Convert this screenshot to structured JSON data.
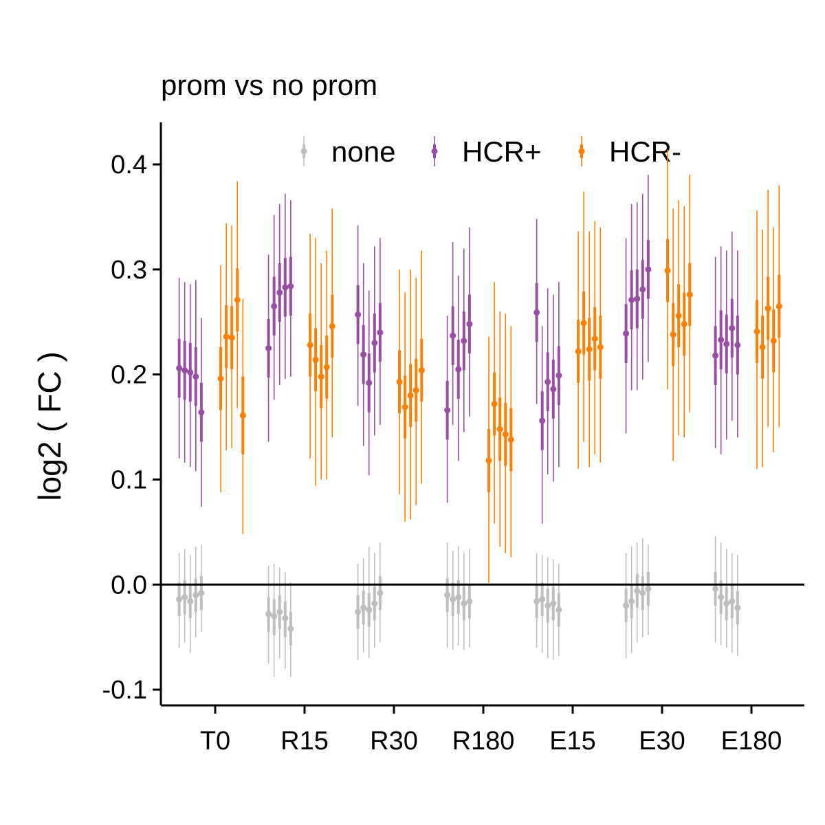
{
  "chart_data": {
    "type": "scatter",
    "title": "prom vs no prom",
    "xlabel": "",
    "ylabel": "log2 ( FC )",
    "categories": [
      "T0",
      "R15",
      "R30",
      "R180",
      "E15",
      "E30",
      "E180"
    ],
    "yticks": [
      "-0.1",
      "0.0",
      "0.1",
      "0.2",
      "0.3",
      "0.4"
    ],
    "ylim": [
      -0.115,
      0.44
    ],
    "reference_line_y": 0,
    "grid": false,
    "legend_position": "top",
    "offsets": [
      -0.26,
      -0.22,
      -0.18,
      -0.14,
      -0.1,
      -0.06,
      -0.02,
      0.02,
      0.06,
      0.1,
      0.14,
      0.18,
      0.22,
      0.26
    ],
    "series": [
      {
        "name": "none",
        "color": "#bebebe",
        "offset_index": [
          0,
          1,
          2,
          3,
          4
        ],
        "points": [
          [
            [
              -0.014,
              -0.03,
              0.002,
              -0.06,
              0.03
            ],
            [
              -0.012,
              -0.028,
              0.004,
              -0.055,
              0.034
            ],
            [
              -0.016,
              -0.032,
              0.0,
              -0.065,
              0.028
            ],
            [
              -0.01,
              -0.026,
              0.006,
              -0.05,
              0.036
            ],
            [
              -0.008,
              -0.024,
              0.008,
              -0.045,
              0.038
            ]
          ],
          [
            [
              -0.028,
              -0.045,
              -0.012,
              -0.075,
              0.018
            ],
            [
              -0.03,
              -0.048,
              -0.014,
              -0.088,
              0.02
            ],
            [
              -0.026,
              -0.042,
              -0.01,
              -0.07,
              0.016
            ],
            [
              -0.032,
              -0.05,
              -0.016,
              -0.08,
              0.012
            ],
            [
              -0.042,
              -0.058,
              -0.026,
              -0.088,
              0.002
            ]
          ],
          [
            [
              -0.026,
              -0.042,
              -0.01,
              -0.072,
              0.02
            ],
            [
              -0.022,
              -0.038,
              -0.006,
              -0.065,
              0.025
            ],
            [
              -0.024,
              -0.04,
              -0.008,
              -0.07,
              0.036
            ],
            [
              -0.018,
              -0.034,
              -0.002,
              -0.06,
              0.03
            ],
            [
              -0.008,
              -0.024,
              0.008,
              -0.055,
              0.04
            ]
          ],
          [
            [
              -0.01,
              -0.026,
              0.006,
              -0.06,
              0.04
            ],
            [
              -0.014,
              -0.03,
              0.002,
              -0.062,
              0.032
            ],
            [
              -0.012,
              -0.028,
              0.004,
              -0.058,
              0.036
            ],
            [
              -0.018,
              -0.034,
              -0.002,
              -0.062,
              0.03
            ],
            [
              -0.016,
              -0.032,
              0.0,
              -0.06,
              0.034
            ]
          ],
          [
            [
              -0.016,
              -0.032,
              0.0,
              -0.06,
              0.03
            ],
            [
              -0.014,
              -0.03,
              0.002,
              -0.065,
              0.028
            ],
            [
              -0.02,
              -0.036,
              -0.004,
              -0.07,
              0.026
            ],
            [
              -0.018,
              -0.034,
              -0.002,
              -0.072,
              0.024
            ],
            [
              -0.024,
              -0.04,
              -0.008,
              -0.068,
              0.02
            ]
          ],
          [
            [
              -0.02,
              -0.036,
              -0.004,
              -0.07,
              0.03
            ],
            [
              -0.016,
              -0.032,
              0.0,
              -0.065,
              0.036
            ],
            [
              -0.006,
              -0.022,
              0.01,
              -0.055,
              0.04
            ],
            [
              -0.008,
              -0.024,
              0.008,
              -0.05,
              0.044
            ],
            [
              -0.004,
              -0.02,
              0.012,
              -0.048,
              0.038
            ]
          ],
          [
            [
              -0.004,
              -0.02,
              0.012,
              -0.055,
              0.046
            ],
            [
              -0.012,
              -0.028,
              0.004,
              -0.058,
              0.04
            ],
            [
              -0.018,
              -0.034,
              -0.002,
              -0.06,
              0.034
            ],
            [
              -0.016,
              -0.032,
              0.0,
              -0.065,
              0.03
            ],
            [
              -0.022,
              -0.038,
              -0.006,
              -0.068,
              0.028
            ]
          ]
        ]
      },
      {
        "name": "HCR+",
        "color": "#984ea3",
        "offset_index": [
          0,
          1,
          2,
          3,
          4
        ],
        "points": [
          [
            [
              0.206,
              0.178,
              0.234,
              0.12,
              0.292
            ],
            [
              0.204,
              0.176,
              0.232,
              0.116,
              0.288
            ],
            [
              0.202,
              0.174,
              0.23,
              0.112,
              0.286
            ],
            [
              0.198,
              0.17,
              0.226,
              0.108,
              0.29
            ],
            [
              0.164,
              0.136,
              0.192,
              0.074,
              0.254
            ]
          ],
          [
            [
              0.225,
              0.197,
              0.253,
              0.136,
              0.314
            ],
            [
              0.265,
              0.237,
              0.293,
              0.176,
              0.352
            ],
            [
              0.278,
              0.25,
              0.306,
              0.19,
              0.362
            ],
            [
              0.283,
              0.255,
              0.311,
              0.196,
              0.372
            ],
            [
              0.284,
              0.256,
              0.312,
              0.198,
              0.366
            ]
          ],
          [
            [
              0.257,
              0.229,
              0.285,
              0.17,
              0.342
            ],
            [
              0.219,
              0.191,
              0.247,
              0.132,
              0.306
            ],
            [
              0.192,
              0.164,
              0.22,
              0.104,
              0.28
            ],
            [
              0.23,
              0.202,
              0.258,
              0.142,
              0.322
            ],
            [
              0.24,
              0.212,
              0.268,
              0.152,
              0.33
            ]
          ],
          [
            [
              0.166,
              0.138,
              0.194,
              0.078,
              0.256
            ],
            [
              0.237,
              0.209,
              0.265,
              0.152,
              0.326
            ],
            [
              0.205,
              0.177,
              0.233,
              0.118,
              0.294
            ],
            [
              0.232,
              0.204,
              0.26,
              0.145,
              0.32
            ],
            [
              0.248,
              0.22,
              0.276,
              0.16,
              0.34
            ]
          ],
          [
            [
              0.259,
              0.231,
              0.287,
              0.172,
              0.348
            ],
            [
              0.156,
              0.128,
              0.184,
              0.058,
              0.246
            ],
            [
              0.193,
              0.165,
              0.221,
              0.105,
              0.282
            ],
            [
              0.186,
              0.158,
              0.214,
              0.098,
              0.276
            ],
            [
              0.199,
              0.171,
              0.227,
              0.112,
              0.288
            ]
          ],
          [
            [
              0.239,
              0.211,
              0.267,
              0.144,
              0.33
            ],
            [
              0.271,
              0.243,
              0.299,
              0.185,
              0.362
            ],
            [
              0.272,
              0.244,
              0.3,
              0.185,
              0.364
            ],
            [
              0.281,
              0.253,
              0.309,
              0.195,
              0.372
            ],
            [
              0.3,
              0.272,
              0.328,
              0.212,
              0.39
            ]
          ],
          [
            [
              0.218,
              0.19,
              0.246,
              0.13,
              0.312
            ],
            [
              0.233,
              0.205,
              0.261,
              0.124,
              0.322
            ],
            [
              0.229,
              0.201,
              0.257,
              0.138,
              0.318
            ],
            [
              0.244,
              0.216,
              0.272,
              0.156,
              0.336
            ],
            [
              0.228,
              0.2,
              0.256,
              0.14,
              0.318
            ]
          ]
        ]
      },
      {
        "name": "HCR-",
        "color": "#ff7f00",
        "offset_index": [
          5,
          6,
          7,
          8,
          9
        ],
        "points": [
          [
            [
              0.196,
              0.166,
              0.226,
              0.088,
              0.304
            ],
            [
              0.236,
              0.206,
              0.266,
              0.128,
              0.344
            ],
            [
              0.235,
              0.205,
              0.265,
              0.13,
              0.342
            ],
            [
              0.271,
              0.241,
              0.301,
              0.168,
              0.384
            ],
            [
              0.161,
              0.124,
              0.198,
              0.048,
              0.272
            ]
          ],
          [
            [
              0.228,
              0.198,
              0.258,
              0.12,
              0.334
            ],
            [
              0.214,
              0.184,
              0.244,
              0.094,
              0.33
            ],
            [
              0.198,
              0.168,
              0.228,
              0.1,
              0.306
            ],
            [
              0.207,
              0.177,
              0.237,
              0.1,
              0.318
            ],
            [
              0.246,
              0.216,
              0.276,
              0.14,
              0.358
            ]
          ],
          [
            [
              0.193,
              0.163,
              0.223,
              0.086,
              0.3
            ],
            [
              0.169,
              0.139,
              0.199,
              0.06,
              0.278
            ],
            [
              0.18,
              0.15,
              0.21,
              0.062,
              0.3
            ],
            [
              0.185,
              0.155,
              0.215,
              0.076,
              0.292
            ],
            [
              0.204,
              0.174,
              0.234,
              0.096,
              0.318
            ]
          ],
          [
            [
              0.118,
              0.088,
              0.148,
              0.002,
              0.236
            ],
            [
              0.172,
              0.142,
              0.202,
              0.058,
              0.288
            ],
            [
              0.148,
              0.118,
              0.178,
              0.036,
              0.26
            ],
            [
              0.143,
              0.113,
              0.173,
              0.03,
              0.258
            ],
            [
              0.138,
              0.108,
              0.168,
              0.026,
              0.246
            ]
          ],
          [
            [
              0.222,
              0.192,
              0.252,
              0.11,
              0.336
            ],
            [
              0.249,
              0.219,
              0.279,
              0.136,
              0.374
            ],
            [
              0.224,
              0.194,
              0.254,
              0.112,
              0.336
            ],
            [
              0.234,
              0.204,
              0.264,
              0.124,
              0.346
            ],
            [
              0.226,
              0.196,
              0.256,
              0.116,
              0.34
            ]
          ],
          [
            [
              0.299,
              0.269,
              0.329,
              0.186,
              0.414
            ],
            [
              0.238,
              0.208,
              0.268,
              0.118,
              0.358
            ],
            [
              0.256,
              0.226,
              0.286,
              0.142,
              0.366
            ],
            [
              0.248,
              0.218,
              0.278,
              0.14,
              0.36
            ],
            [
              0.276,
              0.246,
              0.306,
              0.164,
              0.39
            ]
          ],
          [
            [
              0.241,
              0.211,
              0.271,
              0.11,
              0.356
            ],
            [
              0.226,
              0.196,
              0.256,
              0.112,
              0.338
            ],
            [
              0.263,
              0.233,
              0.293,
              0.15,
              0.376
            ],
            [
              0.232,
              0.202,
              0.262,
              0.126,
              0.34
            ],
            [
              0.265,
              0.235,
              0.295,
              0.15,
              0.38
            ]
          ]
        ]
      }
    ],
    "point_format": "[estimate, inner_low, inner_high, outer_low, outer_high]"
  }
}
